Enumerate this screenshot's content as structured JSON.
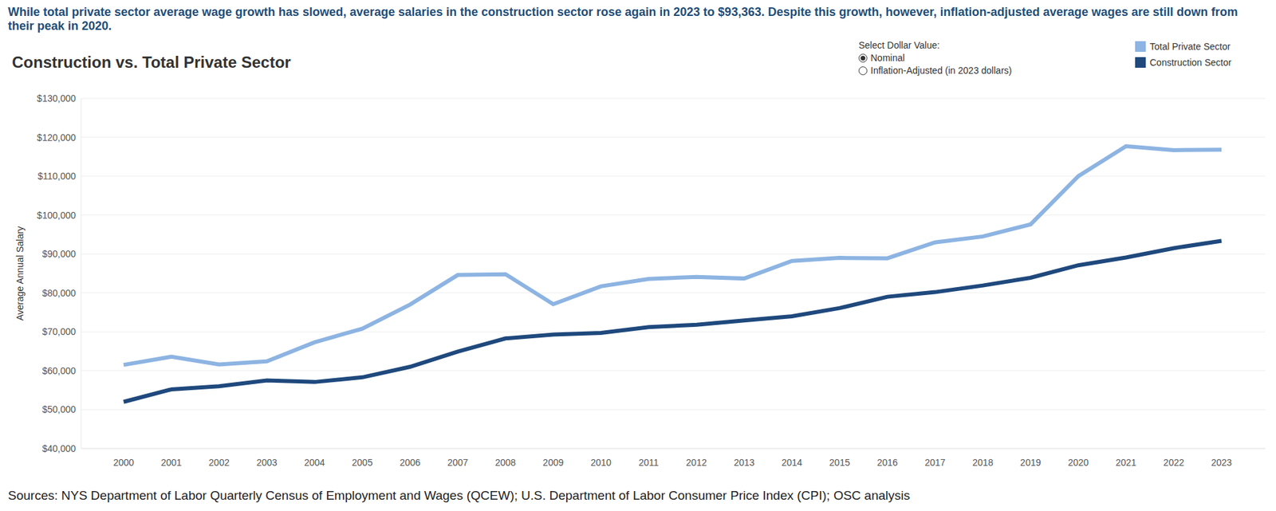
{
  "chart_data": {
    "type": "line",
    "subtitle": "While total private sector average wage growth has slowed, average salaries in the construction sector rose again in 2023 to $93,363. Despite this growth, however, inflation-adjusted average wages are still down from their peak in 2020.",
    "title": "Construction vs. Total Private Sector",
    "y_label": "Average Annual Salary",
    "source": "Sources: NYS Department of Labor Quarterly Census of Employment and Wages (QCEW); U.S. Department of Labor Consumer Price Index (CPI); OSC analysis",
    "categories": [
      "2000",
      "2001",
      "2002",
      "2003",
      "2004",
      "2005",
      "2006",
      "2007",
      "2008",
      "2009",
      "2010",
      "2011",
      "2012",
      "2013",
      "2014",
      "2015",
      "2016",
      "2017",
      "2018",
      "2019",
      "2020",
      "2021",
      "2022",
      "2023"
    ],
    "series": [
      {
        "name": "Total Private Sector",
        "color": "#8db4e2",
        "values": [
          61500,
          63600,
          61600,
          62400,
          67300,
          70800,
          77000,
          84600,
          84800,
          77100,
          81700,
          83600,
          84100,
          83700,
          88200,
          89000,
          88900,
          93000,
          94500,
          97600,
          110000,
          117700,
          116700,
          116800
        ]
      },
      {
        "name": "Construction Sector",
        "color": "#1f497d",
        "values": [
          52000,
          55200,
          56000,
          57500,
          57100,
          58300,
          61000,
          64900,
          68300,
          69300,
          69700,
          71200,
          71800,
          72900,
          74000,
          76100,
          79000,
          80200,
          81900,
          83900,
          87100,
          89100,
          91500,
          93363
        ]
      }
    ],
    "ylim": [
      40000,
      130000
    ],
    "yticks": [
      {
        "value": 40000,
        "label": "$40,000"
      },
      {
        "value": 50000,
        "label": "$50,000"
      },
      {
        "value": 60000,
        "label": "$60,000"
      },
      {
        "value": 70000,
        "label": "$70,000"
      },
      {
        "value": 80000,
        "label": "$80,000"
      },
      {
        "value": 90000,
        "label": "$90,000"
      },
      {
        "value": 100000,
        "label": "$100,000"
      },
      {
        "value": 110000,
        "label": "$110,000"
      },
      {
        "value": 120000,
        "label": "$120,000"
      },
      {
        "value": 130000,
        "label": "$130,000"
      }
    ],
    "grid": true,
    "legend": "top-right"
  },
  "controls": {
    "label": "Select Dollar Value:",
    "options": [
      "Nominal",
      "Inflation-Adjusted (in 2023 dollars)"
    ],
    "selected": "Nominal"
  }
}
